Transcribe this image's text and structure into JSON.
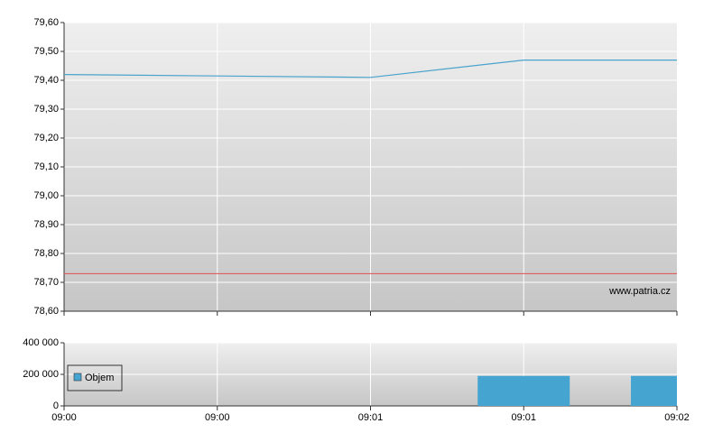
{
  "chart_data": [
    {
      "type": "line",
      "color": "#4aa3cc",
      "values": [
        79.42,
        79.415,
        79.41,
        79.47,
        79.47
      ],
      "ylim": [
        78.6,
        79.6
      ],
      "yticks": [
        {
          "value": 78.6,
          "label": "78,60"
        },
        {
          "value": 78.7,
          "label": "78,70"
        },
        {
          "value": 78.8,
          "label": "78,80"
        },
        {
          "value": 78.9,
          "label": "78,90"
        },
        {
          "value": 79.0,
          "label": "79,00"
        },
        {
          "value": 79.1,
          "label": "79,10"
        },
        {
          "value": 79.2,
          "label": "79,20"
        },
        {
          "value": 79.3,
          "label": "79,30"
        },
        {
          "value": 79.4,
          "label": "79,40"
        },
        {
          "value": 79.5,
          "label": "79,50"
        },
        {
          "value": 79.6,
          "label": "79,60"
        }
      ],
      "reference_line": 78.73,
      "reference_color": "#e05050",
      "annotation": "www.patria.cz",
      "grid": true
    },
    {
      "type": "bar",
      "categories": [
        "09:00",
        "09:00",
        "09:01",
        "09:01",
        "09:02"
      ],
      "series": [
        {
          "name": "Objem",
          "color": "#45a5d0",
          "values": [
            0,
            0,
            0,
            190000,
            190000
          ]
        }
      ],
      "ylim": [
        0,
        400000
      ],
      "yticks": [
        0,
        {
          "value": 200000,
          "label": "200 000"
        },
        {
          "value": 400000,
          "label": "400 000"
        }
      ],
      "legend": "left",
      "grid": true
    }
  ]
}
